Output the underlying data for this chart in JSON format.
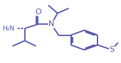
{
  "bg_color": "#ffffff",
  "bond_color": "#5555aa",
  "text_color": "#5555aa",
  "line_width": 1.3,
  "font_size": 6.5,
  "figsize": [
    1.7,
    0.89
  ],
  "dpi": 100,
  "xlim": [
    0.0,
    1.15
  ],
  "ylim": [
    0.0,
    1.0
  ]
}
